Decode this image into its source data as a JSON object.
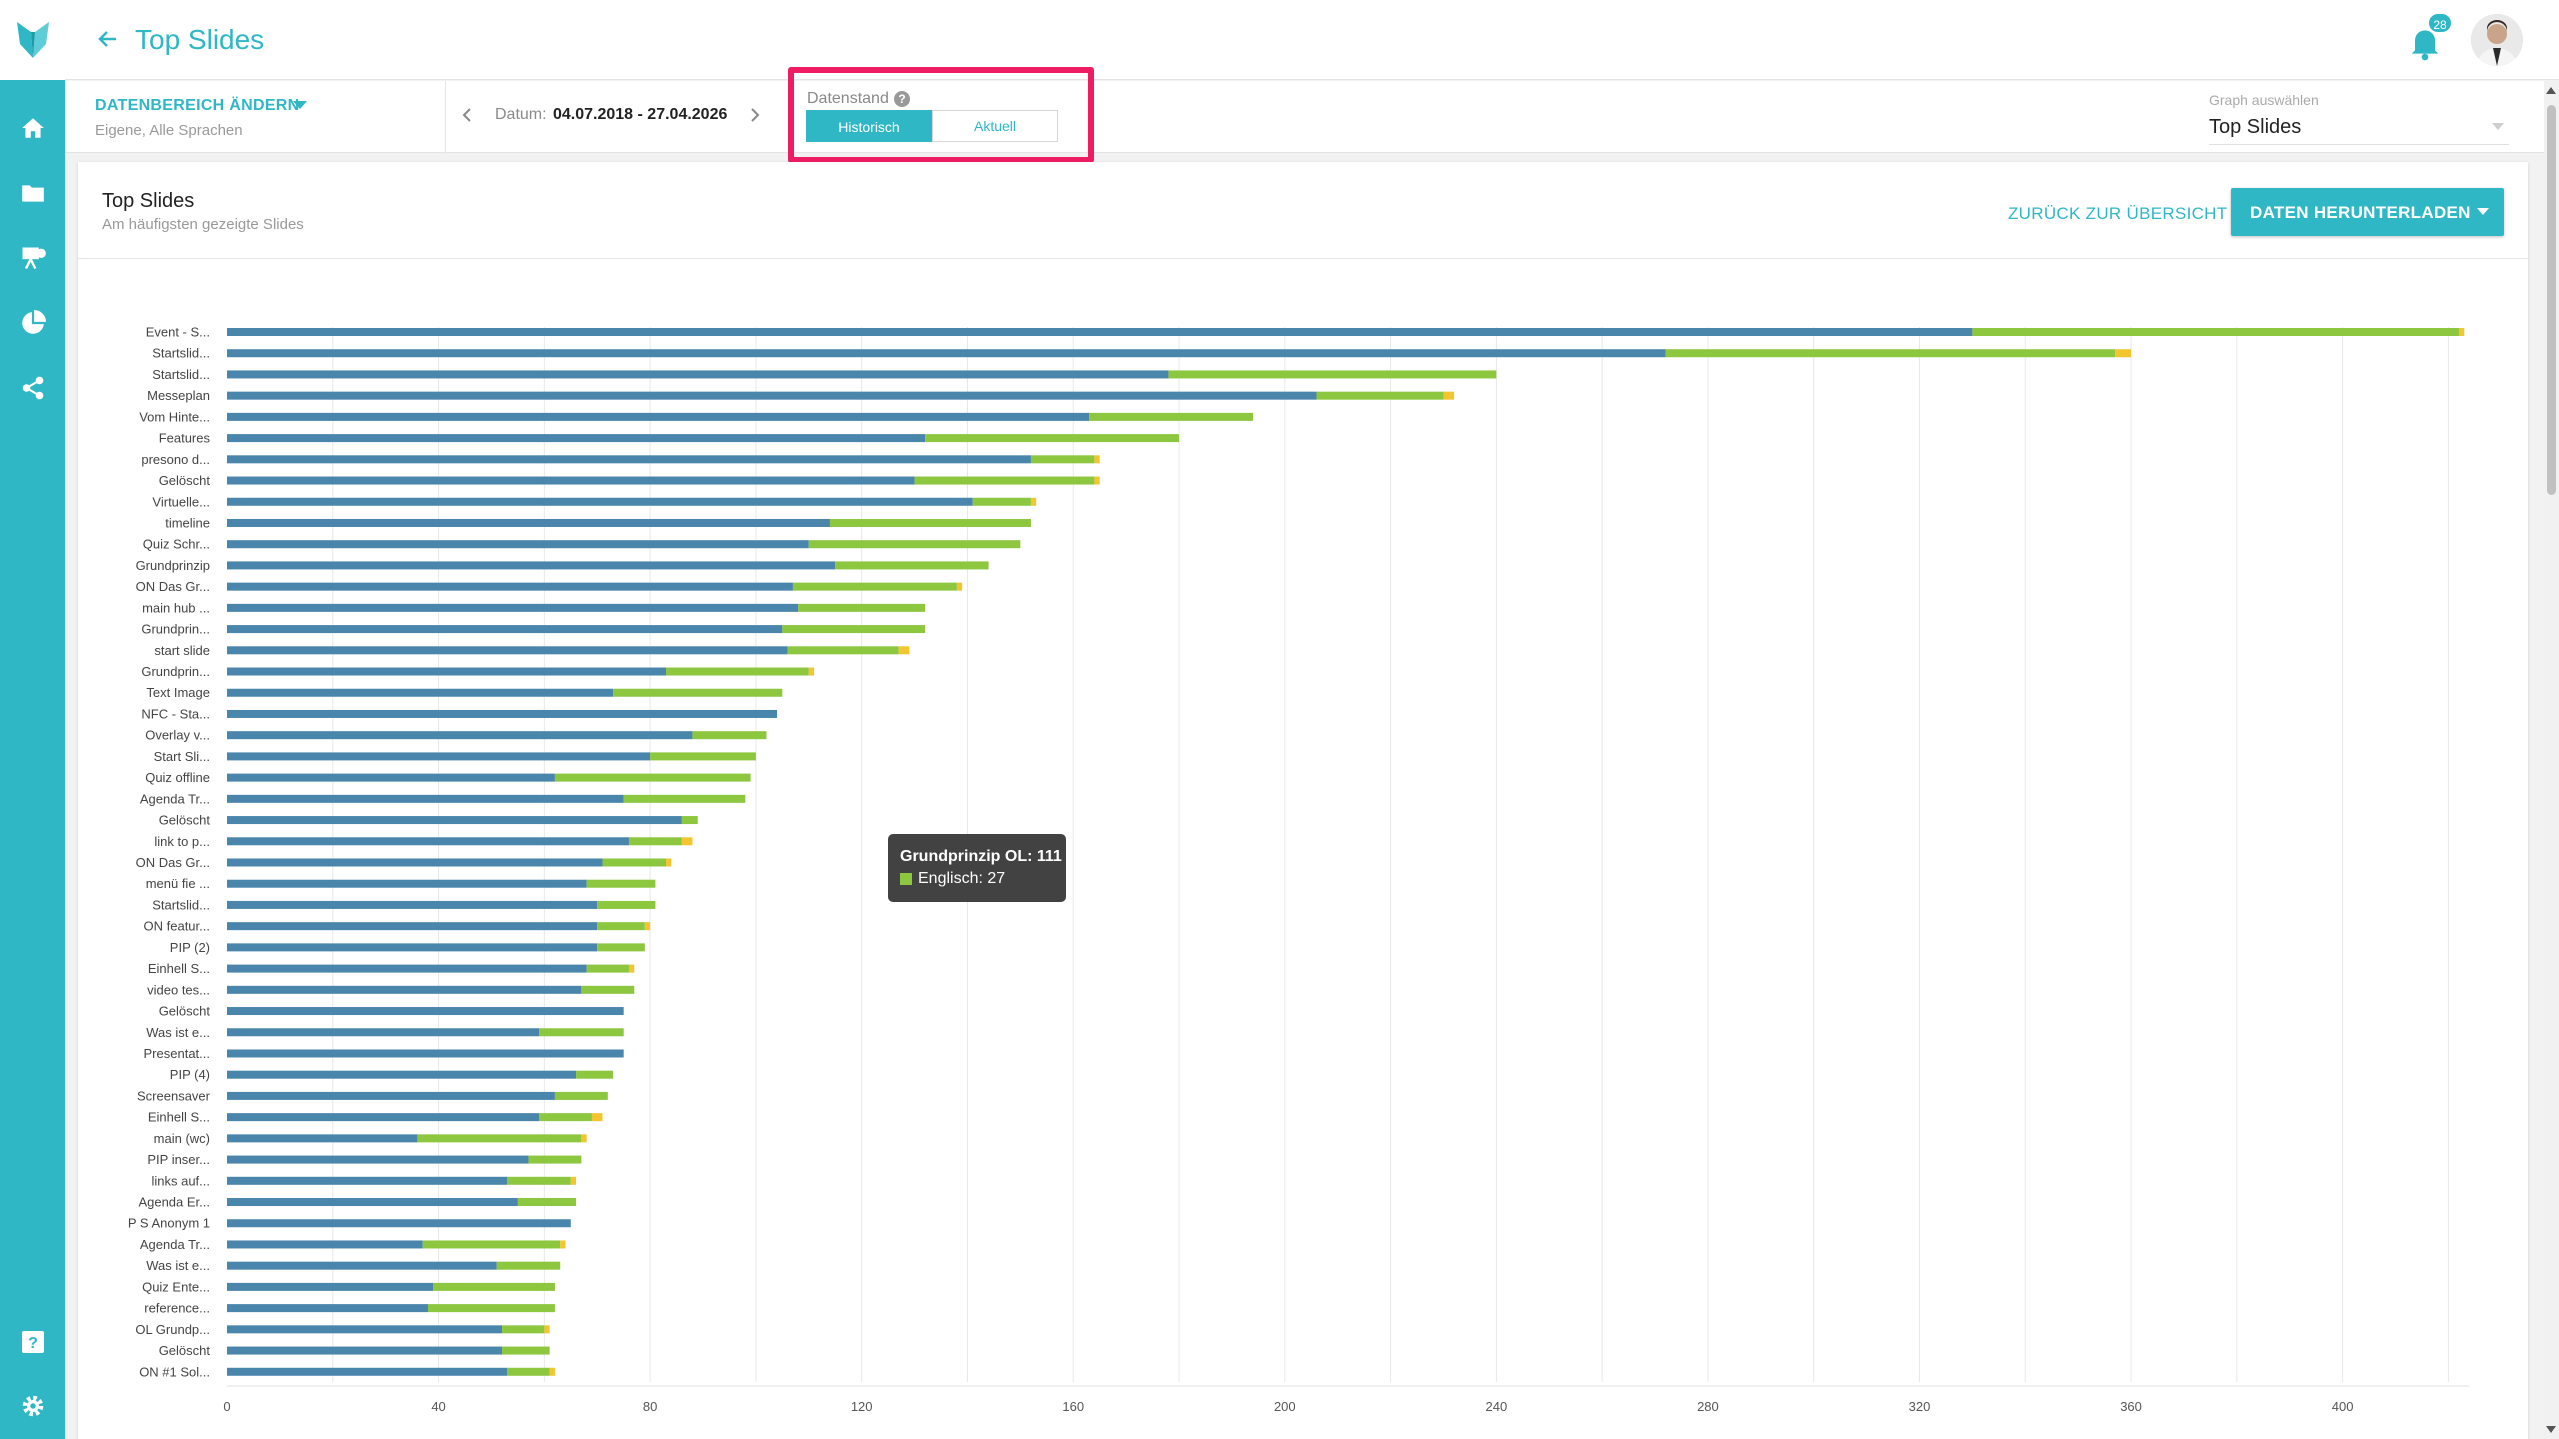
{
  "header": {
    "title": "Top Slides",
    "notification_count": "28"
  },
  "sidebar": {
    "items": [
      {
        "icon": "home-icon"
      },
      {
        "icon": "folder-icon"
      },
      {
        "icon": "presentation-icon"
      },
      {
        "icon": "pie-chart-icon"
      },
      {
        "icon": "share-icon"
      },
      {
        "icon": "help-icon"
      },
      {
        "icon": "gear-icon"
      }
    ]
  },
  "filter": {
    "range_label": "DATENBEREICH ÄNDERN",
    "range_sub": "Eigene, Alle Sprachen",
    "date_label": "Datum:",
    "date_value": "04.07.2018 - 27.04.2026",
    "datenstand_label": "Datenstand",
    "toggle_historisch": "Historisch",
    "toggle_aktuell": "Aktuell",
    "graph_select_label": "Graph auswählen",
    "graph_select_value": "Top Slides"
  },
  "card": {
    "title": "Top Slides",
    "subtitle": "Am häufigsten gezeigte Slides",
    "back_overview": "ZURÜCK ZUR ÜBERSICHT",
    "download": "DATEN HERUNTERLADEN"
  },
  "tooltip": {
    "title": "Grundprinzip OL: 111",
    "value": "Englisch: 27"
  },
  "colors": {
    "accent": "#2fb7c6",
    "highlight": "#ee1c63",
    "series_blue": "#4a85ab",
    "series_green": "#8dc63f",
    "series_yellow": "#f2c531"
  },
  "chart_data": {
    "type": "bar",
    "orientation": "horizontal",
    "stacked": true,
    "xlim": [
      0,
      424
    ],
    "xticks": [
      0,
      40,
      80,
      120,
      160,
      200,
      240,
      280,
      320,
      360,
      400
    ],
    "grid": true,
    "categories": [
      "Event - S...",
      "Startslid...",
      "Startslid...",
      "Messeplan",
      "Vom Hinte...",
      "Features",
      "presono d...",
      "Gelöscht",
      "Virtuelle...",
      "timeline",
      "Quiz Schr...",
      "Grundprinzip",
      "ON Das Gr...",
      "main hub ...",
      "Grundprin...",
      "start slide",
      "Grundprin...",
      "Text Image",
      "NFC - Sta...",
      "Overlay v...",
      "Start Sli...",
      "Quiz offline",
      "Agenda Tr...",
      "Gelöscht",
      "link to p...",
      "ON Das Gr...",
      "menü fie ...",
      "Startslid...",
      "ON featur...",
      "PIP (2)",
      "Einhell S...",
      "video tes...",
      "Gelöscht",
      "Was ist e...",
      "Presentat...",
      "PIP (4)",
      "Screensaver",
      "Einhell S...",
      "main (wc)",
      "PIP inser...",
      "links auf...",
      "Agenda Er...",
      "P S Anonym 1",
      "Agenda Tr...",
      "Was ist e...",
      "Quiz Ente...",
      "reference...",
      "OL Grundp...",
      "Gelöscht",
      "ON #1 Sol..."
    ],
    "series": [
      {
        "values": [
          330,
          272,
          178,
          206,
          163,
          132,
          152,
          130,
          141,
          114,
          110,
          115,
          107,
          108,
          105,
          106,
          83,
          73,
          104,
          88,
          80,
          62,
          75,
          86,
          76,
          71,
          68,
          70,
          70,
          70,
          68,
          67,
          75,
          59,
          75,
          66,
          62,
          59,
          36,
          57,
          53,
          55,
          65,
          37,
          51,
          39,
          38,
          52,
          52,
          53
        ]
      },
      {
        "values": [
          92,
          85,
          62,
          24,
          31,
          48,
          12,
          34,
          11,
          38,
          40,
          29,
          31,
          24,
          27,
          21,
          27,
          32,
          0,
          14,
          20,
          37,
          23,
          3,
          10,
          12,
          13,
          11,
          9,
          9,
          8,
          10,
          0,
          16,
          0,
          7,
          10,
          10,
          31,
          10,
          12,
          11,
          0,
          26,
          12,
          23,
          24,
          8,
          9,
          8
        ]
      },
      {
        "values": [
          1,
          3,
          0,
          2,
          0,
          0,
          1,
          1,
          1,
          0,
          0,
          0,
          1,
          0,
          0,
          2,
          1,
          0,
          0,
          0,
          0,
          0,
          0,
          0,
          2,
          1,
          0,
          0,
          1,
          0,
          1,
          0,
          0,
          0,
          0,
          0,
          0,
          2,
          1,
          0,
          1,
          0,
          0,
          1,
          0,
          0,
          0,
          1,
          0,
          1
        ]
      }
    ]
  }
}
